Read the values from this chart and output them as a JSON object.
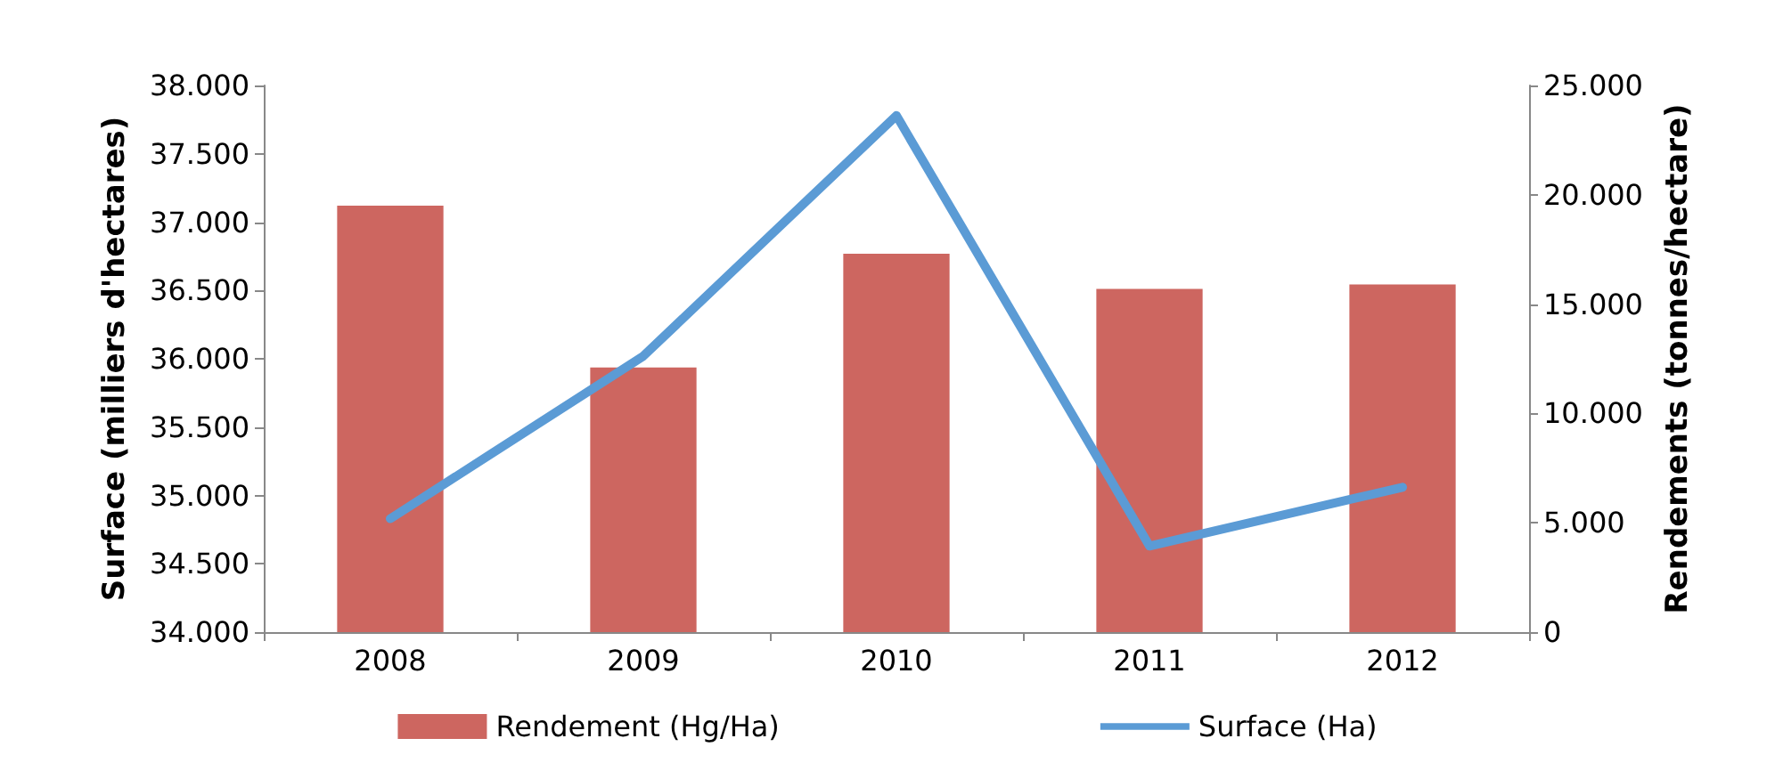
{
  "chart_data": {
    "type": "bar",
    "categories": [
      "2008",
      "2009",
      "2010",
      "2011",
      "2012"
    ],
    "ylabel": "Surface (milliers d'hectares)",
    "y2label": "Rendements (tonnes/hectare)",
    "ylim": [
      34000,
      38000
    ],
    "yticks": [
      {
        "value": 34000,
        "label": "34.000"
      },
      {
        "value": 34500,
        "label": "34.500"
      },
      {
        "value": 35000,
        "label": "35.000"
      },
      {
        "value": 35500,
        "label": "35.500"
      },
      {
        "value": 36000,
        "label": "36.000"
      },
      {
        "value": 36500,
        "label": "36.500"
      },
      {
        "value": 37000,
        "label": "37.000"
      },
      {
        "value": 37500,
        "label": "37.500"
      },
      {
        "value": 38000,
        "label": "38.000"
      }
    ],
    "y2lim": [
      0,
      25000
    ],
    "y2ticks": [
      0,
      {
        "value": 5000,
        "label": "5.000"
      },
      {
        "value": 10000,
        "label": "10.000"
      },
      {
        "value": 15000,
        "label": "15.000"
      },
      {
        "value": 20000,
        "label": "20.000"
      },
      {
        "value": 25000,
        "label": "25.000"
      }
    ],
    "series": [
      {
        "name": "Rendement (Hg/Ha)",
        "axis": "y2",
        "color": "#cd6660",
        "values": [
          19500,
          12100,
          17300,
          15700,
          15900
        ]
      },
      {
        "name": "Surface (Ha)",
        "type": "line",
        "axis": "y",
        "color": "#5b9bd5",
        "values": [
          34830,
          36020,
          37780,
          34630,
          35060
        ]
      }
    ],
    "legend": "bottom",
    "grid": false,
    "marker": "none"
  }
}
